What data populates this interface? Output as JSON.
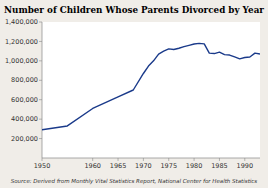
{
  "chart_data": {
    "type": "line",
    "title": "Number of Children Whose Parents Divorced by Year",
    "source": "Source: Derived from Monthly Vital Statistics Report, National Center for Health Statistics",
    "x": [
      1950,
      1955,
      1960,
      1965,
      1968,
      1970,
      1971,
      1972,
      1973,
      1974,
      1975,
      1976,
      1977,
      1978,
      1979,
      1980,
      1981,
      1982,
      1983,
      1984,
      1985,
      1986,
      1987,
      1988,
      1989,
      1990,
      1991,
      1992,
      1993
    ],
    "values": [
      290000,
      330000,
      510000,
      630000,
      700000,
      870000,
      946000,
      1000000,
      1070000,
      1100000,
      1123000,
      1117000,
      1130000,
      1147000,
      1160000,
      1174000,
      1180000,
      1175000,
      1080000,
      1075000,
      1090000,
      1064000,
      1060000,
      1040000,
      1020000,
      1035000,
      1040000,
      1080000,
      1070000
    ],
    "color": "#1a3a8a",
    "xlim": [
      1950,
      1993
    ],
    "ylim": [
      0,
      1400000
    ],
    "xticks": [
      1950,
      1960,
      1965,
      1970,
      1975,
      1980,
      1985,
      1990
    ],
    "yticks": [
      {
        "value": 200000,
        "label": "200,000"
      },
      {
        "value": 400000,
        "label": "400,000"
      },
      {
        "value": 600000,
        "label": "600,000"
      },
      {
        "value": 800000,
        "label": "800,000"
      },
      {
        "value": 1000000,
        "label": "1,000,000"
      },
      {
        "value": 1200000,
        "label": "1,200,000"
      },
      {
        "value": 1400000,
        "label": "1,400,000"
      }
    ],
    "grid": false
  }
}
